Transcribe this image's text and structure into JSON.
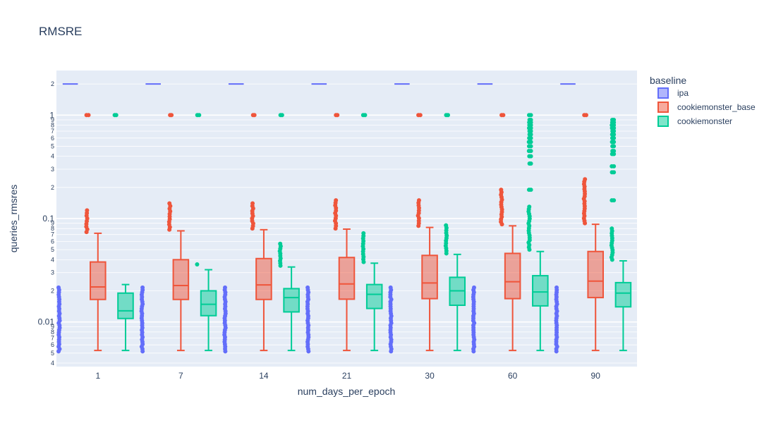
{
  "chart_data": {
    "type": "box",
    "title": "RMSRE",
    "xlabel": "num_days_per_epoch",
    "ylabel": "queries_rmsres",
    "y_scale": "log",
    "ylim": [
      0.0037,
      2.7
    ],
    "grid": true,
    "legend_title": "baseline",
    "legend_placement": "top-right",
    "categories": [
      "1",
      "7",
      "14",
      "21",
      "30",
      "60",
      "90"
    ],
    "y_major_ticks": [
      {
        "value": 0.01,
        "label": "0.01"
      },
      {
        "value": 0.1,
        "label": "0.1"
      },
      {
        "value": 1,
        "label": "1"
      }
    ],
    "y_minor_ticks": [
      {
        "value": 0.004,
        "label": "4"
      },
      {
        "value": 0.005,
        "label": "5"
      },
      {
        "value": 0.006,
        "label": "6"
      },
      {
        "value": 0.007,
        "label": "7"
      },
      {
        "value": 0.008,
        "label": "8"
      },
      {
        "value": 0.009,
        "label": "9"
      },
      {
        "value": 0.02,
        "label": "2"
      },
      {
        "value": 0.03,
        "label": "3"
      },
      {
        "value": 0.04,
        "label": "4"
      },
      {
        "value": 0.05,
        "label": "5"
      },
      {
        "value": 0.06,
        "label": "6"
      },
      {
        "value": 0.07,
        "label": "7"
      },
      {
        "value": 0.08,
        "label": "8"
      },
      {
        "value": 0.09,
        "label": "9"
      },
      {
        "value": 0.2,
        "label": "2"
      },
      {
        "value": 0.3,
        "label": "3"
      },
      {
        "value": 0.4,
        "label": "4"
      },
      {
        "value": 0.5,
        "label": "5"
      },
      {
        "value": 0.6,
        "label": "6"
      },
      {
        "value": 0.7,
        "label": "7"
      },
      {
        "value": 0.8,
        "label": "8"
      },
      {
        "value": 0.9,
        "label": "9"
      },
      {
        "value": 2,
        "label": "2"
      }
    ],
    "series": [
      {
        "name": "ipa",
        "color": "#636efa",
        "boxes": [
          {
            "median": 2.0,
            "q1": 2.0,
            "q3": 2.0,
            "lower": 2.0,
            "upper": 2.0
          },
          {
            "median": 2.0,
            "q1": 2.0,
            "q3": 2.0,
            "lower": 2.0,
            "upper": 2.0
          },
          {
            "median": 2.0,
            "q1": 2.0,
            "q3": 2.0,
            "lower": 2.0,
            "upper": 2.0
          },
          {
            "median": 2.0,
            "q1": 2.0,
            "q3": 2.0,
            "lower": 2.0,
            "upper": 2.0
          },
          {
            "median": 2.0,
            "q1": 2.0,
            "q3": 2.0,
            "lower": 2.0,
            "upper": 2.0
          },
          {
            "median": 2.0,
            "q1": 2.0,
            "q3": 2.0,
            "lower": 2.0,
            "upper": 2.0
          },
          {
            "median": 2.0,
            "q1": 2.0,
            "q3": 2.0,
            "lower": 2.0,
            "upper": 2.0
          }
        ],
        "outlier_ranges": [
          [
            0.0052,
            0.0215
          ],
          [
            0.0052,
            0.0215
          ],
          [
            0.0052,
            0.0215
          ],
          [
            0.0052,
            0.0215
          ],
          [
            0.0052,
            0.0215
          ],
          [
            0.0052,
            0.0215
          ],
          [
            0.0052,
            0.0215
          ]
        ]
      },
      {
        "name": "cookiemonster_base",
        "color": "#ef553b",
        "boxes": [
          {
            "lower": 0.0053,
            "q1": 0.0165,
            "median": 0.0218,
            "q3": 0.038,
            "upper": 0.072
          },
          {
            "lower": 0.0053,
            "q1": 0.0165,
            "median": 0.0225,
            "q3": 0.04,
            "upper": 0.076
          },
          {
            "lower": 0.0053,
            "q1": 0.0165,
            "median": 0.0228,
            "q3": 0.041,
            "upper": 0.078
          },
          {
            "lower": 0.0053,
            "q1": 0.0166,
            "median": 0.0233,
            "q3": 0.042,
            "upper": 0.079
          },
          {
            "lower": 0.0053,
            "q1": 0.0168,
            "median": 0.0238,
            "q3": 0.044,
            "upper": 0.082
          },
          {
            "lower": 0.0053,
            "q1": 0.0168,
            "median": 0.0245,
            "q3": 0.046,
            "upper": 0.085
          },
          {
            "lower": 0.0053,
            "q1": 0.0172,
            "median": 0.0248,
            "q3": 0.048,
            "upper": 0.088
          }
        ],
        "outlier_ranges": [
          [
            0.074,
            0.12
          ],
          [
            0.078,
            0.14
          ],
          [
            0.08,
            0.14
          ],
          [
            0.08,
            0.15
          ],
          [
            0.085,
            0.15
          ],
          [
            0.088,
            0.19
          ],
          [
            0.09,
            0.24
          ]
        ],
        "extreme_outliers": [
          [
            1.0
          ],
          [
            1.0
          ],
          [
            1.0
          ],
          [
            1.0
          ],
          [
            1.0
          ],
          [
            1.0
          ],
          [
            1.0
          ]
        ]
      },
      {
        "name": "cookiemonster",
        "color": "#00cc96",
        "boxes": [
          {
            "lower": 0.0053,
            "q1": 0.0108,
            "median": 0.0128,
            "q3": 0.019,
            "upper": 0.023
          },
          {
            "lower": 0.0053,
            "q1": 0.0115,
            "median": 0.0148,
            "q3": 0.02,
            "upper": 0.032
          },
          {
            "lower": 0.0053,
            "q1": 0.0125,
            "median": 0.0172,
            "q3": 0.021,
            "upper": 0.034
          },
          {
            "lower": 0.0053,
            "q1": 0.0135,
            "median": 0.0185,
            "q3": 0.023,
            "upper": 0.037
          },
          {
            "lower": 0.0053,
            "q1": 0.0145,
            "median": 0.02,
            "q3": 0.027,
            "upper": 0.045
          },
          {
            "lower": 0.0053,
            "q1": 0.0143,
            "median": 0.0195,
            "q3": 0.028,
            "upper": 0.048
          },
          {
            "lower": 0.0053,
            "q1": 0.014,
            "median": 0.019,
            "q3": 0.024,
            "upper": 0.039
          }
        ],
        "outlier_ranges": [
          [],
          [
            0.036,
            0.036
          ],
          [
            0.035,
            0.057
          ],
          [
            0.038,
            0.072
          ],
          [
            0.046,
            0.086
          ],
          [
            0.05,
            0.13
          ],
          [
            0.04,
            0.08
          ]
        ],
        "extreme_outliers": [
          [
            1.0
          ],
          [
            1.0
          ],
          [
            1.0
          ],
          [
            1.0
          ],
          [
            1.0
          ],
          [
            0.19,
            0.34,
            0.4,
            0.45,
            0.5,
            0.55,
            0.6,
            0.65,
            0.7,
            0.75,
            0.8,
            0.85,
            0.9,
            1.0
          ],
          [
            0.15,
            0.28,
            0.32,
            0.42,
            0.45,
            0.5,
            0.55,
            0.6,
            0.65,
            0.7,
            0.75,
            0.8,
            0.85,
            0.9
          ]
        ]
      }
    ]
  }
}
